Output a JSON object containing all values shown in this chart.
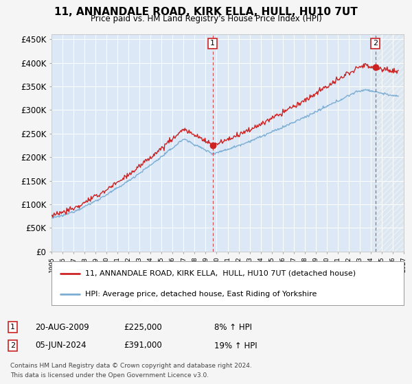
{
  "title": "11, ANNANDALE ROAD, KIRK ELLA, HULL, HU10 7UT",
  "subtitle": "Price paid vs. HM Land Registry's House Price Index (HPI)",
  "legend_line1": "11, ANNANDALE ROAD, KIRK ELLA,  HULL, HU10 7UT (detached house)",
  "legend_line2": "HPI: Average price, detached house, East Riding of Yorkshire",
  "annotation1_date": "20-AUG-2009",
  "annotation1_price": "£225,000",
  "annotation1_hpi": "8% ↑ HPI",
  "annotation2_date": "05-JUN-2024",
  "annotation2_price": "£391,000",
  "annotation2_hpi": "19% ↑ HPI",
  "footnote1": "Contains HM Land Registry data © Crown copyright and database right 2024.",
  "footnote2": "This data is licensed under the Open Government Licence v3.0.",
  "hpi_color": "#7aadd4",
  "price_color": "#cc2222",
  "background_plot": "#dce8f5",
  "background_fig": "#f5f5f5",
  "ylim": [
    0,
    460000
  ],
  "yticks": [
    0,
    50000,
    100000,
    150000,
    200000,
    250000,
    300000,
    350000,
    400000,
    450000
  ],
  "sale1_x": 2009.644,
  "sale1_y": 225000,
  "sale2_x": 2024.427,
  "sale2_y": 391000,
  "xmin": 1995,
  "xmax": 2027
}
